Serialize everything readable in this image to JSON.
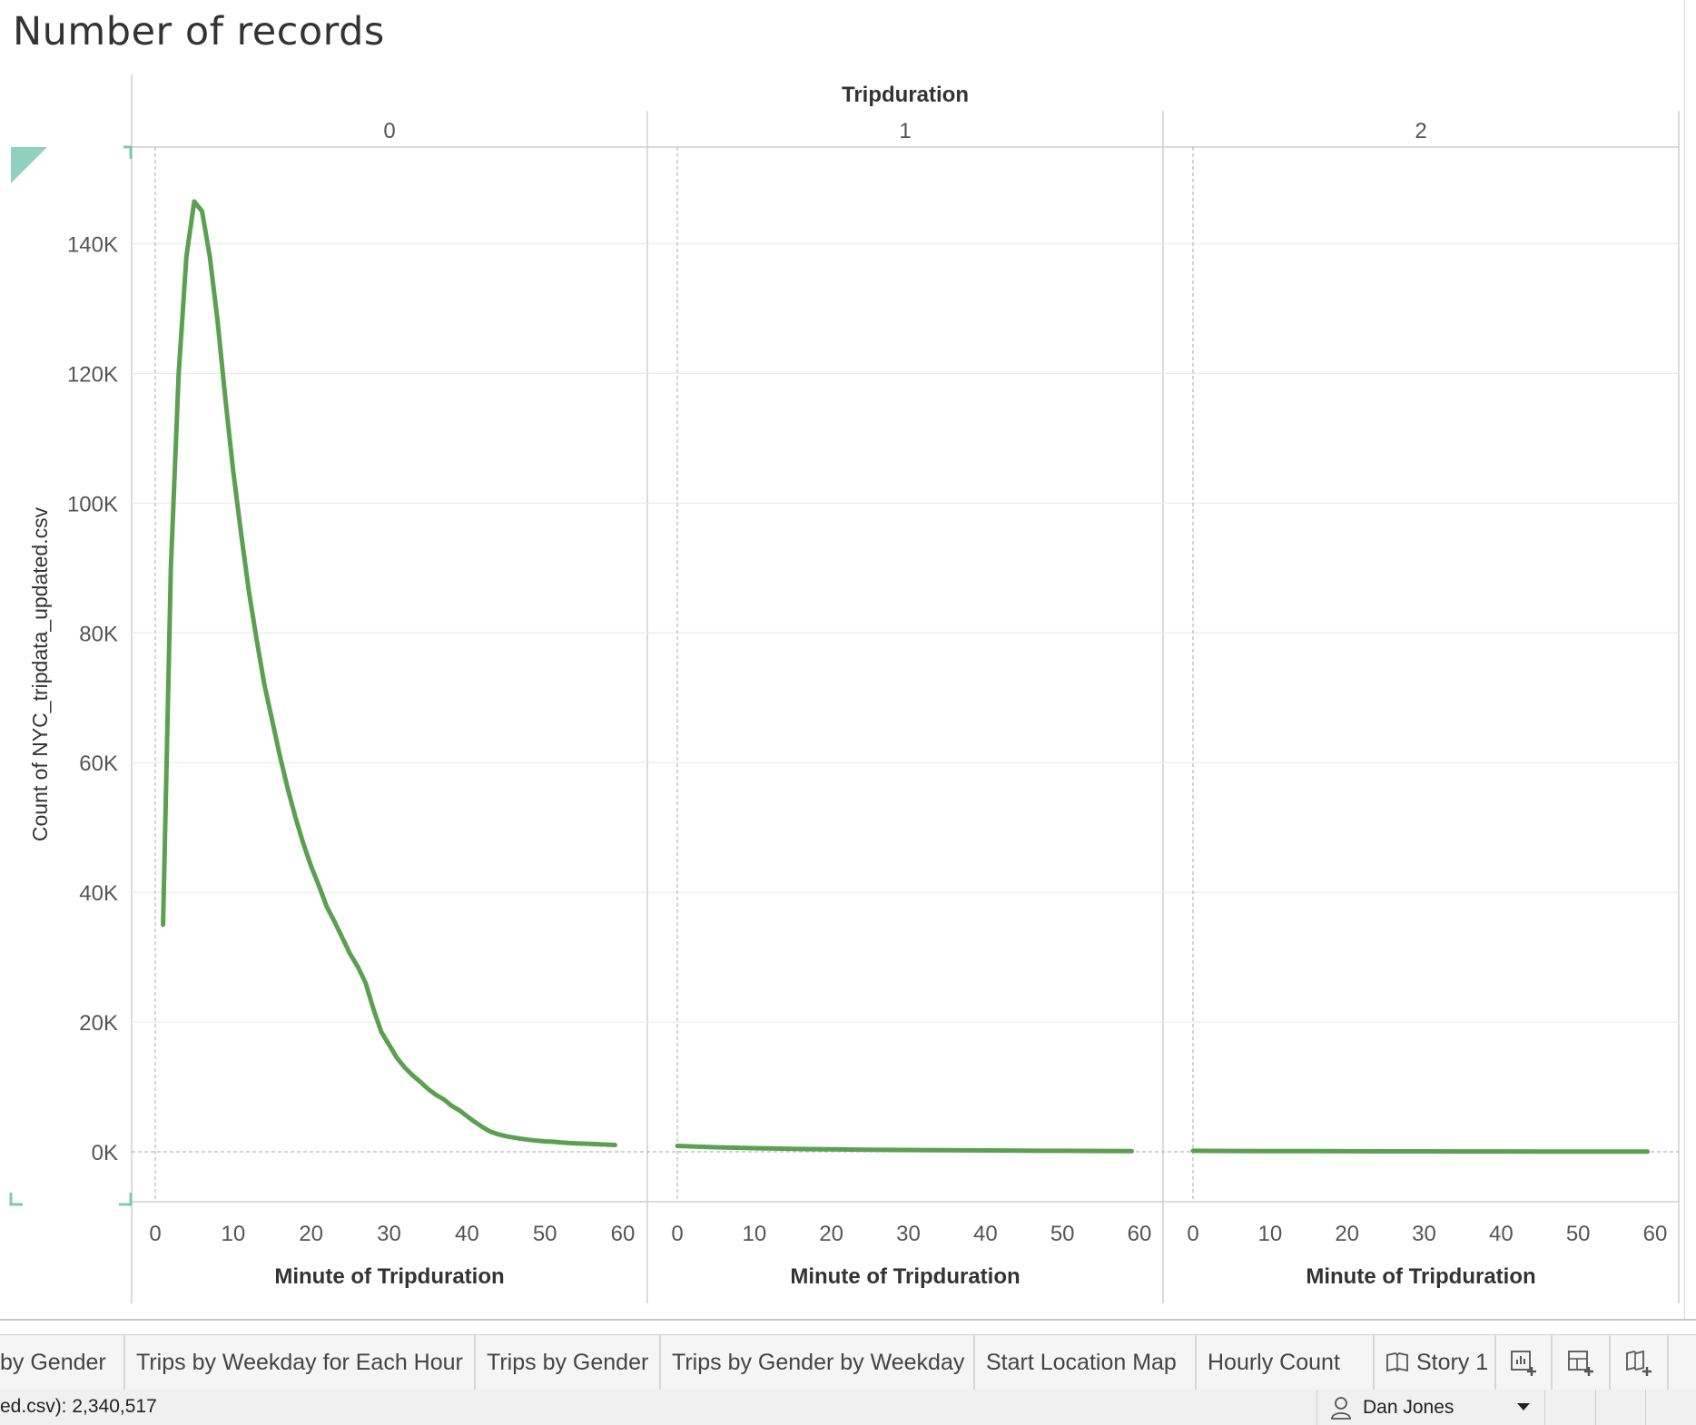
{
  "sheet": {
    "title": "Number of records"
  },
  "chart_data": {
    "type": "line",
    "column_header": "Tripduration",
    "panels": [
      {
        "label": "0",
        "x": [
          1,
          2,
          3,
          4,
          5,
          6,
          7,
          8,
          9,
          10,
          11,
          12,
          13,
          14,
          15,
          16,
          17,
          18,
          19,
          20,
          21,
          22,
          23,
          24,
          25,
          26,
          27,
          28,
          29,
          30,
          31,
          32,
          33,
          34,
          35,
          36,
          37,
          38,
          39,
          40,
          41,
          42,
          43,
          44,
          45,
          46,
          47,
          48,
          49,
          50,
          51,
          52,
          53,
          54,
          55,
          56,
          57,
          58,
          59
        ],
        "y": [
          35000,
          90000,
          120000,
          138000,
          146500,
          145000,
          138000,
          128000,
          116000,
          105000,
          95500,
          86500,
          79000,
          72000,
          66500,
          61000,
          56000,
          51500,
          47500,
          44000,
          41000,
          37800,
          35500,
          33000,
          30500,
          28500,
          26000,
          22000,
          18500,
          16500,
          14500,
          13000,
          11800,
          10800,
          9700,
          8800,
          8100,
          7100,
          6400,
          5500,
          4600,
          3800,
          3100,
          2700,
          2400,
          2200,
          2000,
          1850,
          1700,
          1600,
          1550,
          1450,
          1350,
          1300,
          1250,
          1200,
          1150,
          1100,
          1050
        ]
      },
      {
        "label": "1",
        "x": [
          0,
          5,
          10,
          15,
          20,
          25,
          30,
          35,
          40,
          45,
          50,
          55,
          59
        ],
        "y": [
          900,
          700,
          550,
          450,
          380,
          320,
          270,
          230,
          200,
          170,
          150,
          120,
          100
        ]
      },
      {
        "label": "2",
        "x": [
          0,
          5,
          10,
          15,
          20,
          25,
          30,
          35,
          40,
          45,
          50,
          55,
          59
        ],
        "y": [
          150,
          120,
          100,
          90,
          80,
          70,
          60,
          55,
          50,
          45,
          40,
          35,
          30
        ]
      }
    ],
    "xlabel": "Minute of Tripduration",
    "ylabel": "Count of NYC_tripdata_updated.csv",
    "x_ticks": [
      0,
      10,
      20,
      30,
      40,
      50,
      60
    ],
    "xlim": [
      0,
      60
    ],
    "y_ticks": [
      0,
      20000,
      40000,
      60000,
      80000,
      100000,
      120000,
      140000
    ],
    "y_tick_labels": [
      "0K",
      "20K",
      "40K",
      "60K",
      "80K",
      "100K",
      "120K",
      "140K"
    ],
    "ylim": [
      -7700,
      154900
    ],
    "line_color": "#59a14f",
    "grid": true
  },
  "tabs": [
    {
      "label": "by Gender"
    },
    {
      "label": "Trips by Weekday for Each Hour"
    },
    {
      "label": "Trips by Gender"
    },
    {
      "label": "Trips by Gender by Weekday"
    },
    {
      "label": "Start Location Map"
    },
    {
      "label": "Hourly Count"
    },
    {
      "label": "Story 1",
      "icon": "story-book-icon"
    }
  ],
  "tab_actions": [
    {
      "icon": "new-worksheet-icon"
    },
    {
      "icon": "new-dashboard-icon"
    },
    {
      "icon": "new-story-icon"
    }
  ],
  "status": {
    "record_count": "ed.csv): 2,340,517",
    "user_name": "Dan Jones"
  }
}
